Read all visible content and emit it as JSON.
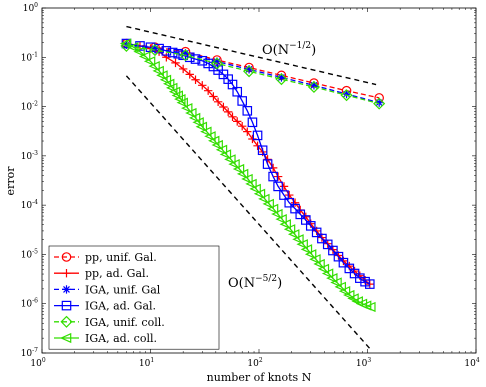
{
  "chart_data": {
    "type": "line",
    "xlabel": "number of knots N",
    "ylabel": "error",
    "x_scale": "log",
    "y_scale": "log",
    "xlim": [
      1,
      10000
    ],
    "ylim": [
      1e-07,
      1
    ],
    "x_ticks": [
      {
        "base": "10",
        "exp": "0"
      },
      {
        "base": "10",
        "exp": "1"
      },
      {
        "base": "10",
        "exp": "2"
      },
      {
        "base": "10",
        "exp": "3"
      },
      {
        "base": "10",
        "exp": "4"
      }
    ],
    "y_ticks": [
      {
        "base": "10",
        "exp": "0"
      },
      {
        "base": "10",
        "exp": "-1"
      },
      {
        "base": "10",
        "exp": "-2"
      },
      {
        "base": "10",
        "exp": "-3"
      },
      {
        "base": "10",
        "exp": "-4"
      },
      {
        "base": "10",
        "exp": "-5"
      },
      {
        "base": "10",
        "exp": "-6"
      },
      {
        "base": "10",
        "exp": "-7"
      }
    ],
    "grid": false,
    "legend_position": "bottom-left",
    "annotations": [
      {
        "base": "O(N",
        "exp": "−1/2",
        "close": ")"
      },
      {
        "base": "O(N",
        "exp": "−5/2",
        "close": ")"
      }
    ],
    "reference_lines": [
      {
        "name": "O(N^-1/2)",
        "x": [
          6,
          1200
        ],
        "y": [
          0.42,
          0.028
        ]
      },
      {
        "name": "O(N^-5/2)",
        "x": [
          6,
          1100
        ],
        "y": [
          0.042,
          1.1e-07
        ]
      }
    ],
    "series": [
      {
        "name": "pp, unif. Gal.",
        "color": "#ff0000",
        "line": "dashed",
        "marker": "circle",
        "x": [
          6,
          11,
          21,
          41,
          81,
          161,
          321,
          641,
          1281
        ],
        "y": [
          0.19,
          0.16,
          0.13,
          0.088,
          0.062,
          0.043,
          0.03,
          0.021,
          0.015
        ]
      },
      {
        "name": "pp, ad. Gal.",
        "color": "#ff0000",
        "line": "solid",
        "marker": "plus",
        "x": [
          6,
          8,
          10,
          12,
          14,
          17,
          20,
          23,
          26,
          30,
          34,
          38,
          42,
          47,
          52,
          57,
          63,
          70,
          78,
          87,
          97,
          108,
          120,
          135,
          150,
          170,
          190,
          215,
          240,
          270,
          300,
          340,
          380,
          430,
          480,
          540,
          600,
          680,
          760,
          850,
          950,
          1050
        ],
        "y": [
          0.19,
          0.17,
          0.15,
          0.13,
          0.1,
          0.077,
          0.058,
          0.045,
          0.035,
          0.027,
          0.021,
          0.016,
          0.0125,
          0.0098,
          0.0078,
          0.0062,
          0.005,
          0.004,
          0.0031,
          0.0022,
          0.0016,
          0.0012,
          0.00085,
          0.00057,
          0.00038,
          0.00024,
          0.00016,
          0.000112,
          8e-05,
          5.8e-05,
          4.2e-05,
          3e-05,
          2.2e-05,
          1.65e-05,
          1.25e-05,
          9.5e-06,
          7.4e-06,
          5.8e-06,
          4.6e-06,
          3.7e-06,
          3e-06,
          2.5e-06
        ]
      },
      {
        "name": "IGA, unif. Gal",
        "color": "#0000ff",
        "line": "dashed",
        "marker": "asterisk",
        "x": [
          6,
          11,
          21,
          41,
          81,
          161,
          321,
          641,
          1281
        ],
        "y": [
          0.18,
          0.15,
          0.12,
          0.082,
          0.057,
          0.039,
          0.027,
          0.018,
          0.012
        ]
      },
      {
        "name": "IGA, ad. Gal.",
        "color": "#0000ff",
        "line": "solid",
        "marker": "square",
        "x": [
          6,
          8,
          10,
          12,
          14,
          16,
          18,
          20,
          23,
          26,
          30,
          34,
          38,
          42,
          47,
          52,
          57,
          63,
          70,
          78,
          87,
          97,
          108,
          120,
          135,
          150,
          170,
          190,
          215,
          240,
          270,
          300,
          340,
          380,
          430,
          480,
          540,
          600,
          680,
          760,
          850,
          950,
          1050
        ],
        "y": [
          0.19,
          0.17,
          0.16,
          0.15,
          0.135,
          0.125,
          0.118,
          0.11,
          0.1,
          0.092,
          0.085,
          0.075,
          0.065,
          0.055,
          0.045,
          0.036,
          0.028,
          0.02,
          0.013,
          0.0082,
          0.0048,
          0.0026,
          0.0013,
          0.00068,
          0.00038,
          0.00024,
          0.00016,
          0.000112,
          8.5e-05,
          6.5e-05,
          5e-05,
          3.8e-05,
          2.8e-05,
          2.1e-05,
          1.6e-05,
          1.2e-05,
          9e-06,
          6.8e-06,
          5.2e-06,
          4.1e-06,
          3.3e-06,
          2.8e-06,
          2.5e-06
        ]
      },
      {
        "name": "IGA, unif. coll.",
        "color": "#33dd00",
        "line": "dashed",
        "marker": "diamond",
        "x": [
          6,
          11,
          21,
          41,
          81,
          161,
          321,
          641,
          1281
        ],
        "y": [
          0.17,
          0.14,
          0.11,
          0.075,
          0.052,
          0.036,
          0.025,
          0.017,
          0.0115
        ]
      },
      {
        "name": "IGA, ad. coll.",
        "color": "#33dd00",
        "line": "solid",
        "marker": "triangle-left",
        "x": [
          6,
          7,
          8,
          9,
          10,
          11,
          12,
          13,
          14,
          15,
          16,
          17,
          18,
          19,
          20,
          22,
          24,
          26,
          28,
          30,
          33,
          36,
          39,
          42,
          46,
          50,
          55,
          60,
          66,
          72,
          79,
          86,
          94,
          103,
          113,
          124,
          136,
          149,
          163,
          178,
          195,
          213,
          233,
          255,
          279,
          305,
          334,
          365,
          400,
          437,
          478,
          523,
          572,
          626,
          685,
          750,
          820,
          897,
          980,
          1072
        ],
        "y": [
          0.19,
          0.16,
          0.13,
          0.104,
          0.083,
          0.066,
          0.053,
          0.043,
          0.035,
          0.029,
          0.024,
          0.02,
          0.0168,
          0.0142,
          0.012,
          0.0093,
          0.0074,
          0.0059,
          0.0048,
          0.0039,
          0.0031,
          0.0025,
          0.00202,
          0.00166,
          0.00133,
          0.00107,
          0.00085,
          0.00068,
          0.00054,
          0.00043,
          0.00034,
          0.00027,
          0.000214,
          0.00017,
          0.000134,
          0.000106,
          8.4e-05,
          6.6e-05,
          5.2e-05,
          4.1e-05,
          3.25e-05,
          2.57e-05,
          2.03e-05,
          1.61e-05,
          1.27e-05,
          1.01e-05,
          8e-06,
          6.4e-06,
          5.1e-06,
          4.1e-06,
          3.3e-06,
          2.7e-06,
          2.2e-06,
          1.8e-06,
          1.5e-06,
          1.28e-06,
          1.12e-06,
          1e-06,
          9.2e-07,
          8.6e-07
        ]
      }
    ]
  }
}
